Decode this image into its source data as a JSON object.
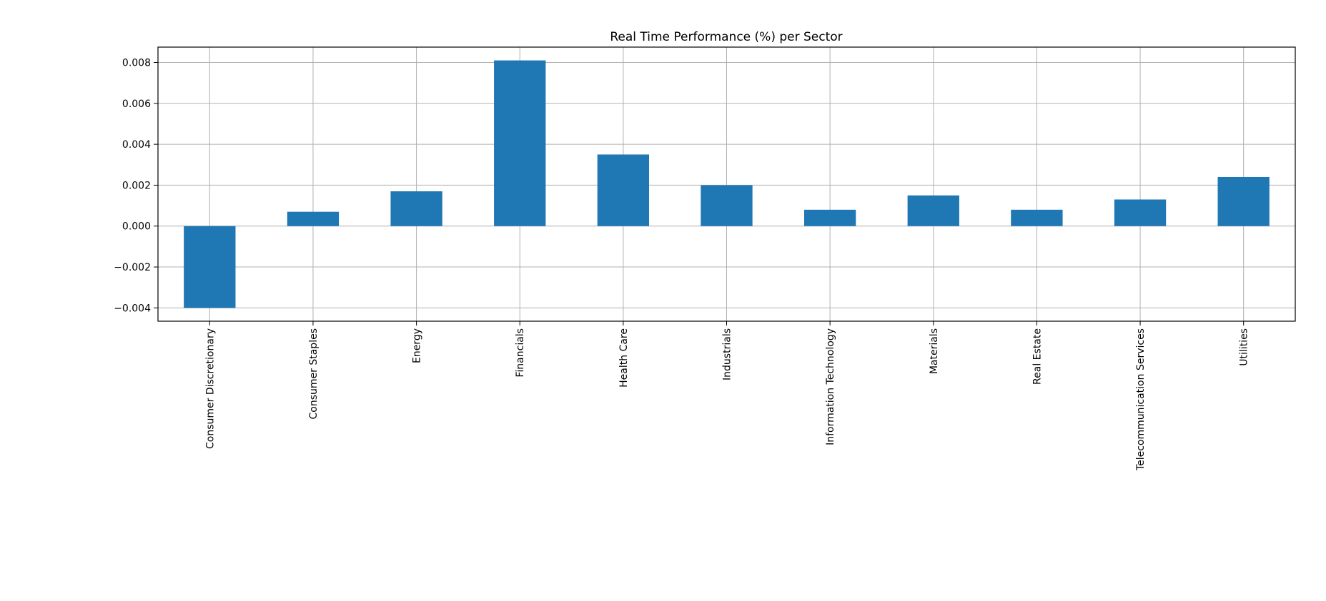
{
  "chart_data": {
    "type": "bar",
    "title": "Real Time Performance (%) per Sector",
    "xlabel": "",
    "ylabel": "",
    "categories": [
      "Consumer Discretionary",
      "Consumer Staples",
      "Energy",
      "Financials",
      "Health Care",
      "Industrials",
      "Information Technology",
      "Materials",
      "Real Estate",
      "Telecommunication Services",
      "Utilities"
    ],
    "values": [
      -0.004,
      0.0007,
      0.0017,
      0.0081,
      0.0035,
      0.002,
      0.0008,
      0.0015,
      0.0008,
      0.0013,
      0.0024
    ],
    "yticks": [
      -0.004,
      -0.002,
      0.0,
      0.002,
      0.004,
      0.006,
      0.008
    ],
    "ytick_labels": [
      "−0.004",
      "−0.002",
      "0.000",
      "0.002",
      "0.004",
      "0.006",
      "0.008"
    ],
    "ylim": [
      -0.00465,
      0.00875
    ],
    "grid": true,
    "legend": "none",
    "bar_color": "#1f77b4",
    "grid_color": "#b0b0b0"
  }
}
